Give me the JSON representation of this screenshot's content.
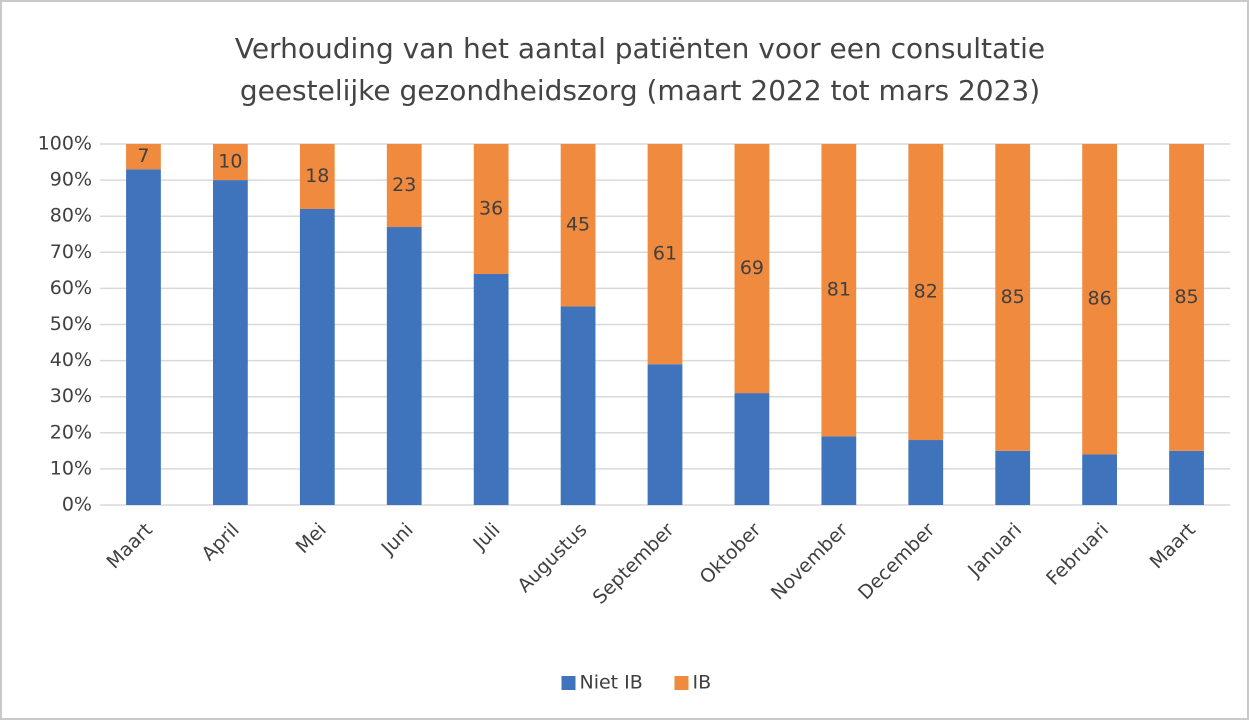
{
  "chart_data": {
    "type": "stacked_bar",
    "title": [
      "Verhouding van het aantal patiënten voor een consultatie",
      "geestelijke gezondheidszorg (maart 2022 tot mars 2023)"
    ],
    "categories": [
      "Maart",
      "April",
      "Mei",
      "Juni",
      "Juli",
      "Augustus",
      "September",
      "Oktober",
      "November",
      "December",
      "Januari",
      "Februari",
      "Maart"
    ],
    "series": [
      {
        "name": "Niet IB",
        "color": "#3f74bd",
        "values": [
          93,
          90,
          82,
          77,
          64,
          55,
          39,
          31,
          19,
          18,
          15,
          14,
          15
        ],
        "data_labels": false
      },
      {
        "name": "IB",
        "color": "#f08a3e",
        "values": [
          7,
          10,
          18,
          23,
          36,
          45,
          61,
          69,
          81,
          82,
          85,
          86,
          85
        ],
        "data_labels": true
      }
    ],
    "ylim": [
      0,
      100
    ],
    "yticks": [
      {
        "value": 0,
        "label": "0%"
      },
      {
        "value": 10,
        "label": "10%"
      },
      {
        "value": 20,
        "label": "20%"
      },
      {
        "value": 30,
        "label": "30%"
      },
      {
        "value": 40,
        "label": "40%"
      },
      {
        "value": 50,
        "label": "50%"
      },
      {
        "value": 60,
        "label": "60%"
      },
      {
        "value": 70,
        "label": "70%"
      },
      {
        "value": 80,
        "label": "80%"
      },
      {
        "value": 90,
        "label": "90%"
      },
      {
        "value": 100,
        "label": "100%"
      }
    ],
    "grid": true,
    "legend": "bottom"
  }
}
